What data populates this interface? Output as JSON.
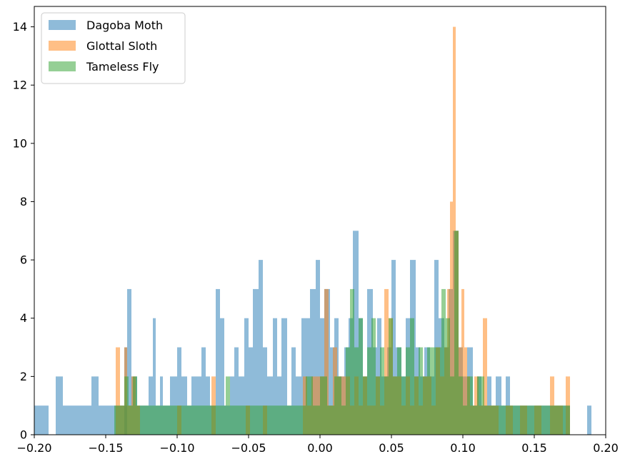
{
  "chart_data": {
    "type": "histogram",
    "title": "",
    "xlabel": "",
    "ylabel": "",
    "xlim": [
      -0.2,
      0.2
    ],
    "ylim": [
      0,
      14.7
    ],
    "grid": false,
    "legend_placement": "top-left",
    "x_ticks": [
      -0.2,
      -0.15,
      -0.1,
      -0.05,
      0.0,
      0.05,
      0.1,
      0.15,
      0.2
    ],
    "x_tick_labels": [
      "−0.20",
      "−0.15",
      "−0.10",
      "−0.05",
      "0.00",
      "0.05",
      "0.10",
      "0.15",
      "0.20"
    ],
    "y_ticks": [
      0,
      2,
      4,
      6,
      8,
      10,
      12,
      14
    ],
    "y_tick_labels": [
      "0",
      "2",
      "4",
      "6",
      "8",
      "10",
      "12",
      "14"
    ],
    "series": [
      {
        "name": "Dagoba Moth",
        "color": "#1f77b4",
        "opacity": 0.5,
        "bins": [
          [
            -0.2,
            -0.195,
            1
          ],
          [
            -0.195,
            -0.19,
            1
          ],
          [
            -0.185,
            -0.18,
            2
          ],
          [
            -0.18,
            -0.175,
            1
          ],
          [
            -0.175,
            -0.17,
            1
          ],
          [
            -0.17,
            -0.16,
            1
          ],
          [
            -0.16,
            -0.155,
            2
          ],
          [
            -0.155,
            -0.15,
            1
          ],
          [
            -0.15,
            -0.135,
            1
          ],
          [
            -0.137,
            -0.135,
            3
          ],
          [
            -0.135,
            -0.132,
            5
          ],
          [
            -0.132,
            -0.128,
            2
          ],
          [
            -0.128,
            -0.125,
            1
          ],
          [
            -0.125,
            -0.12,
            1
          ],
          [
            -0.12,
            -0.117,
            2
          ],
          [
            -0.117,
            -0.115,
            4
          ],
          [
            -0.115,
            -0.112,
            1
          ],
          [
            -0.112,
            -0.11,
            2
          ],
          [
            -0.11,
            -0.105,
            1
          ],
          [
            -0.105,
            -0.1,
            2
          ],
          [
            -0.1,
            -0.097,
            3
          ],
          [
            -0.097,
            -0.093,
            2
          ],
          [
            -0.093,
            -0.09,
            1
          ],
          [
            -0.09,
            -0.087,
            2
          ],
          [
            -0.087,
            -0.083,
            2
          ],
          [
            -0.083,
            -0.08,
            3
          ],
          [
            -0.08,
            -0.077,
            2
          ],
          [
            -0.077,
            -0.073,
            1
          ],
          [
            -0.073,
            -0.07,
            5
          ],
          [
            -0.07,
            -0.067,
            4
          ],
          [
            -0.067,
            -0.063,
            1
          ],
          [
            -0.063,
            -0.06,
            2
          ],
          [
            -0.06,
            -0.057,
            3
          ],
          [
            -0.057,
            -0.053,
            2
          ],
          [
            -0.053,
            -0.05,
            4
          ],
          [
            -0.05,
            -0.047,
            3
          ],
          [
            -0.047,
            -0.043,
            5
          ],
          [
            -0.043,
            -0.04,
            6
          ],
          [
            -0.04,
            -0.037,
            3
          ],
          [
            -0.037,
            -0.033,
            2
          ],
          [
            -0.033,
            -0.03,
            4
          ],
          [
            -0.03,
            -0.027,
            2
          ],
          [
            -0.027,
            -0.023,
            4
          ],
          [
            -0.023,
            -0.02,
            1
          ],
          [
            -0.02,
            -0.017,
            3
          ],
          [
            -0.017,
            -0.013,
            2
          ],
          [
            -0.013,
            -0.01,
            4
          ],
          [
            -0.01,
            -0.007,
            4
          ],
          [
            -0.007,
            -0.003,
            5
          ],
          [
            -0.003,
            0.0,
            6
          ],
          [
            0.0,
            0.003,
            4
          ],
          [
            0.003,
            0.007,
            5
          ],
          [
            0.007,
            0.01,
            3
          ],
          [
            0.01,
            0.013,
            4
          ],
          [
            0.013,
            0.017,
            2
          ],
          [
            0.017,
            0.02,
            3
          ],
          [
            0.02,
            0.023,
            4
          ],
          [
            0.023,
            0.027,
            7
          ],
          [
            0.027,
            0.03,
            4
          ],
          [
            0.03,
            0.033,
            2
          ],
          [
            0.033,
            0.037,
            5
          ],
          [
            0.037,
            0.04,
            3
          ],
          [
            0.04,
            0.043,
            4
          ],
          [
            0.043,
            0.047,
            2
          ],
          [
            0.047,
            0.05,
            3
          ],
          [
            0.05,
            0.053,
            6
          ],
          [
            0.053,
            0.057,
            3
          ],
          [
            0.057,
            0.06,
            2
          ],
          [
            0.06,
            0.063,
            4
          ],
          [
            0.063,
            0.067,
            6
          ],
          [
            0.067,
            0.07,
            3
          ],
          [
            0.07,
            0.073,
            2
          ],
          [
            0.073,
            0.077,
            3
          ],
          [
            0.077,
            0.08,
            2
          ],
          [
            0.08,
            0.083,
            6
          ],
          [
            0.083,
            0.087,
            4
          ],
          [
            0.087,
            0.09,
            3
          ],
          [
            0.09,
            0.093,
            5
          ],
          [
            0.093,
            0.097,
            7
          ],
          [
            0.097,
            0.1,
            3
          ],
          [
            0.1,
            0.103,
            2
          ],
          [
            0.103,
            0.107,
            3
          ],
          [
            0.107,
            0.11,
            1
          ],
          [
            0.11,
            0.113,
            2
          ],
          [
            0.113,
            0.117,
            1
          ],
          [
            0.117,
            0.12,
            2
          ],
          [
            0.12,
            0.123,
            1
          ],
          [
            0.123,
            0.127,
            2
          ],
          [
            0.127,
            0.13,
            1
          ],
          [
            0.13,
            0.133,
            2
          ],
          [
            0.133,
            0.137,
            1
          ],
          [
            0.137,
            0.14,
            1
          ],
          [
            0.14,
            0.145,
            1
          ],
          [
            0.145,
            0.15,
            1
          ],
          [
            0.15,
            0.155,
            1
          ],
          [
            0.155,
            0.16,
            1
          ],
          [
            0.16,
            0.165,
            1
          ],
          [
            0.165,
            0.175,
            1
          ],
          [
            0.187,
            0.19,
            1
          ]
        ]
      },
      {
        "name": "Glottal Sloth",
        "color": "#ff7f0e",
        "opacity": 0.5,
        "bins": [
          [
            -0.143,
            -0.14,
            3
          ],
          [
            -0.14,
            -0.137,
            1
          ],
          [
            -0.137,
            -0.135,
            3
          ],
          [
            -0.135,
            -0.132,
            1
          ],
          [
            -0.132,
            -0.129,
            2
          ],
          [
            -0.129,
            -0.126,
            1
          ],
          [
            -0.1,
            -0.097,
            1
          ],
          [
            -0.076,
            -0.073,
            2
          ],
          [
            -0.052,
            -0.049,
            1
          ],
          [
            -0.04,
            -0.037,
            1
          ],
          [
            -0.012,
            -0.009,
            2
          ],
          [
            -0.009,
            -0.006,
            1
          ],
          [
            -0.006,
            -0.003,
            2
          ],
          [
            -0.003,
            0.0,
            2
          ],
          [
            0.0,
            0.003,
            2
          ],
          [
            0.003,
            0.006,
            5
          ],
          [
            0.006,
            0.009,
            1
          ],
          [
            0.009,
            0.012,
            3
          ],
          [
            0.012,
            0.015,
            2
          ],
          [
            0.015,
            0.018,
            2
          ],
          [
            0.018,
            0.021,
            2
          ],
          [
            0.021,
            0.024,
            1
          ],
          [
            0.024,
            0.027,
            2
          ],
          [
            0.027,
            0.03,
            1
          ],
          [
            0.03,
            0.033,
            2
          ],
          [
            0.033,
            0.036,
            1
          ],
          [
            0.036,
            0.039,
            1
          ],
          [
            0.039,
            0.042,
            2
          ],
          [
            0.042,
            0.045,
            1
          ],
          [
            0.045,
            0.048,
            5
          ],
          [
            0.048,
            0.051,
            4
          ],
          [
            0.051,
            0.054,
            2
          ],
          [
            0.054,
            0.057,
            2
          ],
          [
            0.057,
            0.06,
            1
          ],
          [
            0.06,
            0.063,
            2
          ],
          [
            0.063,
            0.066,
            1
          ],
          [
            0.066,
            0.069,
            2
          ],
          [
            0.069,
            0.072,
            1
          ],
          [
            0.072,
            0.075,
            2
          ],
          [
            0.075,
            0.078,
            2
          ],
          [
            0.078,
            0.081,
            1
          ],
          [
            0.081,
            0.084,
            3
          ],
          [
            0.084,
            0.087,
            2
          ],
          [
            0.087,
            0.089,
            3
          ],
          [
            0.089,
            0.091,
            5
          ],
          [
            0.091,
            0.093,
            8
          ],
          [
            0.093,
            0.095,
            14
          ],
          [
            0.095,
            0.097,
            7
          ],
          [
            0.097,
            0.099,
            3
          ],
          [
            0.099,
            0.101,
            5
          ],
          [
            0.101,
            0.103,
            3
          ],
          [
            0.103,
            0.105,
            2
          ],
          [
            0.105,
            0.108,
            1
          ],
          [
            0.108,
            0.111,
            2
          ],
          [
            0.111,
            0.114,
            1
          ],
          [
            0.114,
            0.117,
            4
          ],
          [
            0.117,
            0.12,
            1
          ],
          [
            0.12,
            0.125,
            1
          ],
          [
            0.13,
            0.135,
            1
          ],
          [
            0.14,
            0.145,
            1
          ],
          [
            0.15,
            0.155,
            1
          ],
          [
            0.161,
            0.164,
            2
          ],
          [
            0.164,
            0.167,
            1
          ],
          [
            0.167,
            0.17,
            1
          ],
          [
            0.172,
            0.175,
            2
          ]
        ]
      },
      {
        "name": "Tameless Fly",
        "color": "#2ca02c",
        "opacity": 0.5,
        "bins": [
          [
            -0.144,
            -0.14,
            1
          ],
          [
            -0.14,
            -0.137,
            1
          ],
          [
            -0.137,
            -0.134,
            2
          ],
          [
            -0.134,
            -0.131,
            1
          ],
          [
            -0.131,
            -0.128,
            2
          ],
          [
            -0.128,
            -0.12,
            1
          ],
          [
            -0.12,
            -0.117,
            1
          ],
          [
            -0.117,
            -0.114,
            1
          ],
          [
            -0.114,
            -0.11,
            1
          ],
          [
            -0.11,
            -0.1,
            1
          ],
          [
            -0.1,
            -0.09,
            1
          ],
          [
            -0.09,
            -0.08,
            1
          ],
          [
            -0.08,
            -0.07,
            1
          ],
          [
            -0.07,
            -0.066,
            1
          ],
          [
            -0.066,
            -0.063,
            2
          ],
          [
            -0.063,
            -0.06,
            1
          ],
          [
            -0.06,
            -0.05,
            1
          ],
          [
            -0.05,
            -0.04,
            1
          ],
          [
            -0.04,
            -0.03,
            1
          ],
          [
            -0.03,
            -0.02,
            1
          ],
          [
            -0.02,
            -0.01,
            1
          ],
          [
            -0.01,
            -0.005,
            2
          ],
          [
            -0.005,
            0.0,
            1
          ],
          [
            0.0,
            0.005,
            2
          ],
          [
            0.005,
            0.01,
            1
          ],
          [
            0.01,
            0.015,
            2
          ],
          [
            0.015,
            0.018,
            1
          ],
          [
            0.018,
            0.021,
            3
          ],
          [
            0.021,
            0.024,
            5
          ],
          [
            0.024,
            0.027,
            3
          ],
          [
            0.027,
            0.03,
            4
          ],
          [
            0.03,
            0.033,
            2
          ],
          [
            0.033,
            0.036,
            3
          ],
          [
            0.036,
            0.039,
            4
          ],
          [
            0.039,
            0.042,
            2
          ],
          [
            0.042,
            0.045,
            3
          ],
          [
            0.045,
            0.048,
            2
          ],
          [
            0.048,
            0.051,
            4
          ],
          [
            0.051,
            0.054,
            2
          ],
          [
            0.054,
            0.057,
            3
          ],
          [
            0.057,
            0.06,
            2
          ],
          [
            0.06,
            0.063,
            3
          ],
          [
            0.063,
            0.066,
            4
          ],
          [
            0.066,
            0.069,
            2
          ],
          [
            0.069,
            0.072,
            3
          ],
          [
            0.072,
            0.075,
            2
          ],
          [
            0.075,
            0.08,
            3
          ],
          [
            0.08,
            0.085,
            3
          ],
          [
            0.085,
            0.088,
            5
          ],
          [
            0.088,
            0.091,
            4
          ],
          [
            0.091,
            0.094,
            2
          ],
          [
            0.094,
            0.097,
            7
          ],
          [
            0.097,
            0.1,
            2
          ],
          [
            0.1,
            0.103,
            1
          ],
          [
            0.103,
            0.107,
            2
          ],
          [
            0.107,
            0.11,
            1
          ],
          [
            0.11,
            0.115,
            2
          ],
          [
            0.115,
            0.12,
            1
          ],
          [
            0.12,
            0.13,
            1
          ],
          [
            0.13,
            0.14,
            1
          ],
          [
            0.14,
            0.15,
            1
          ],
          [
            0.15,
            0.16,
            1
          ],
          [
            0.16,
            0.175,
            1
          ]
        ]
      }
    ]
  }
}
